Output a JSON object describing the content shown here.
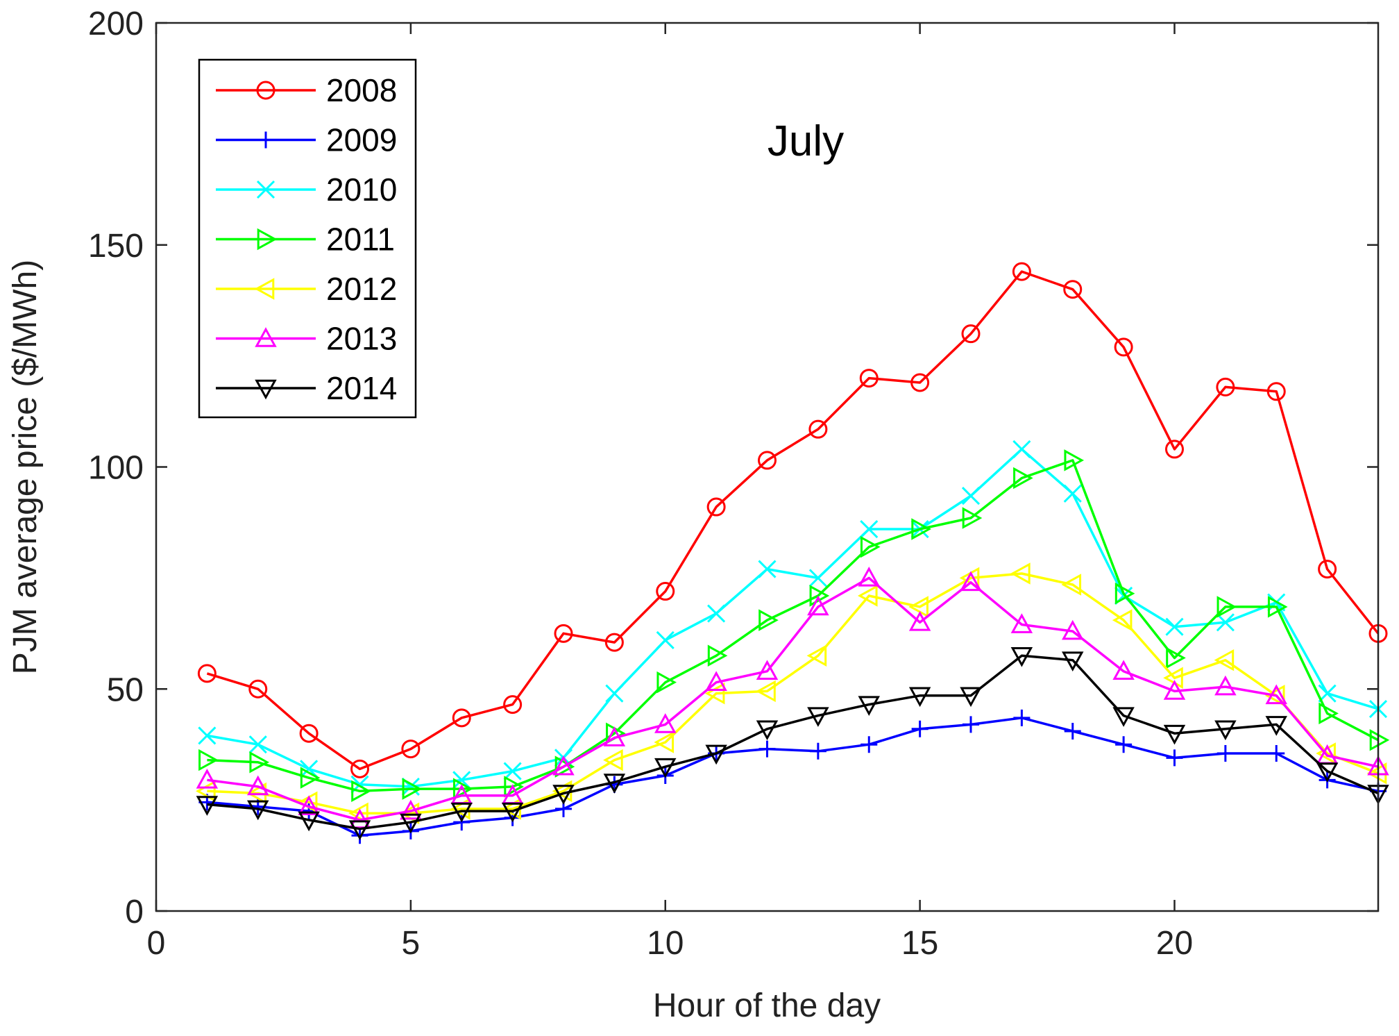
{
  "chart_data": {
    "type": "line",
    "title": "July",
    "xlabel": "Hour of the day",
    "ylabel": "PJM average price ($/MWh)",
    "xlim": [
      0,
      24
    ],
    "ylim": [
      0,
      200
    ],
    "xticks": [
      0,
      5,
      10,
      15,
      20
    ],
    "yticks": [
      0,
      50,
      100,
      150,
      200
    ],
    "grid": false,
    "legend_position": "top-left",
    "x": [
      1,
      2,
      3,
      4,
      5,
      6,
      7,
      8,
      9,
      10,
      11,
      12,
      13,
      14,
      15,
      16,
      17,
      18,
      19,
      20,
      21,
      22,
      23,
      24
    ],
    "series": [
      {
        "name": "2008",
        "color": "#ff0000",
        "marker": "circle",
        "values": [
          53.5,
          50,
          40,
          32,
          36.5,
          43.5,
          46.5,
          62.5,
          60.5,
          72,
          91,
          101.5,
          108.5,
          120,
          119,
          130,
          144,
          140,
          127,
          104,
          118,
          117,
          77,
          62.5
        ]
      },
      {
        "name": "2009",
        "color": "#0000ff",
        "marker": "plus",
        "values": [
          24.5,
          23.5,
          22.5,
          17,
          18,
          20,
          21,
          23,
          28.5,
          30.5,
          35.5,
          36.5,
          36,
          37.5,
          41,
          42,
          43.5,
          40.5,
          37.5,
          34.5,
          35.5,
          35.5,
          29.5,
          27
        ]
      },
      {
        "name": "2010",
        "color": "#00ffff",
        "marker": "x",
        "values": [
          39.5,
          37.5,
          32,
          28.5,
          28,
          29.5,
          31.5,
          34.5,
          49,
          61,
          67,
          77,
          75,
          86,
          86,
          93.5,
          104,
          94,
          71,
          64,
          65,
          69.5,
          49,
          45.5
        ]
      },
      {
        "name": "2011",
        "color": "#00ff00",
        "marker": "triangle-right",
        "values": [
          34,
          33.5,
          30,
          27,
          27.5,
          27.5,
          28,
          32.5,
          40,
          51.5,
          57.5,
          65.5,
          71,
          82,
          86,
          88.5,
          97.5,
          101.5,
          71.5,
          57,
          68.5,
          68.5,
          44.5,
          38.5
        ]
      },
      {
        "name": "2012",
        "color": "#ffff00",
        "marker": "triangle-left",
        "values": [
          27,
          26.5,
          24.5,
          22,
          22,
          23,
          23,
          27,
          34,
          38,
          49,
          49.5,
          57.5,
          71,
          68.5,
          75,
          76,
          73.5,
          65.5,
          52.5,
          56.5,
          48.5,
          35.5,
          31
        ]
      },
      {
        "name": "2013",
        "color": "#ff00ff",
        "marker": "triangle-up",
        "values": [
          29.5,
          28,
          23.5,
          20.5,
          22.5,
          26,
          26,
          32.5,
          39,
          42,
          51.5,
          54,
          68.5,
          75,
          65,
          74,
          64.5,
          63,
          54,
          49.5,
          50.5,
          48.5,
          35,
          32.5
        ]
      },
      {
        "name": "2014",
        "color": "#000000",
        "marker": "triangle-down",
        "values": [
          24,
          23,
          20.5,
          18.5,
          20,
          22.5,
          22.5,
          26.5,
          29,
          32.5,
          35.5,
          41,
          44,
          46.5,
          48.5,
          48.5,
          57.5,
          56.5,
          44,
          40,
          41,
          42,
          31.5,
          26.5
        ]
      }
    ]
  }
}
